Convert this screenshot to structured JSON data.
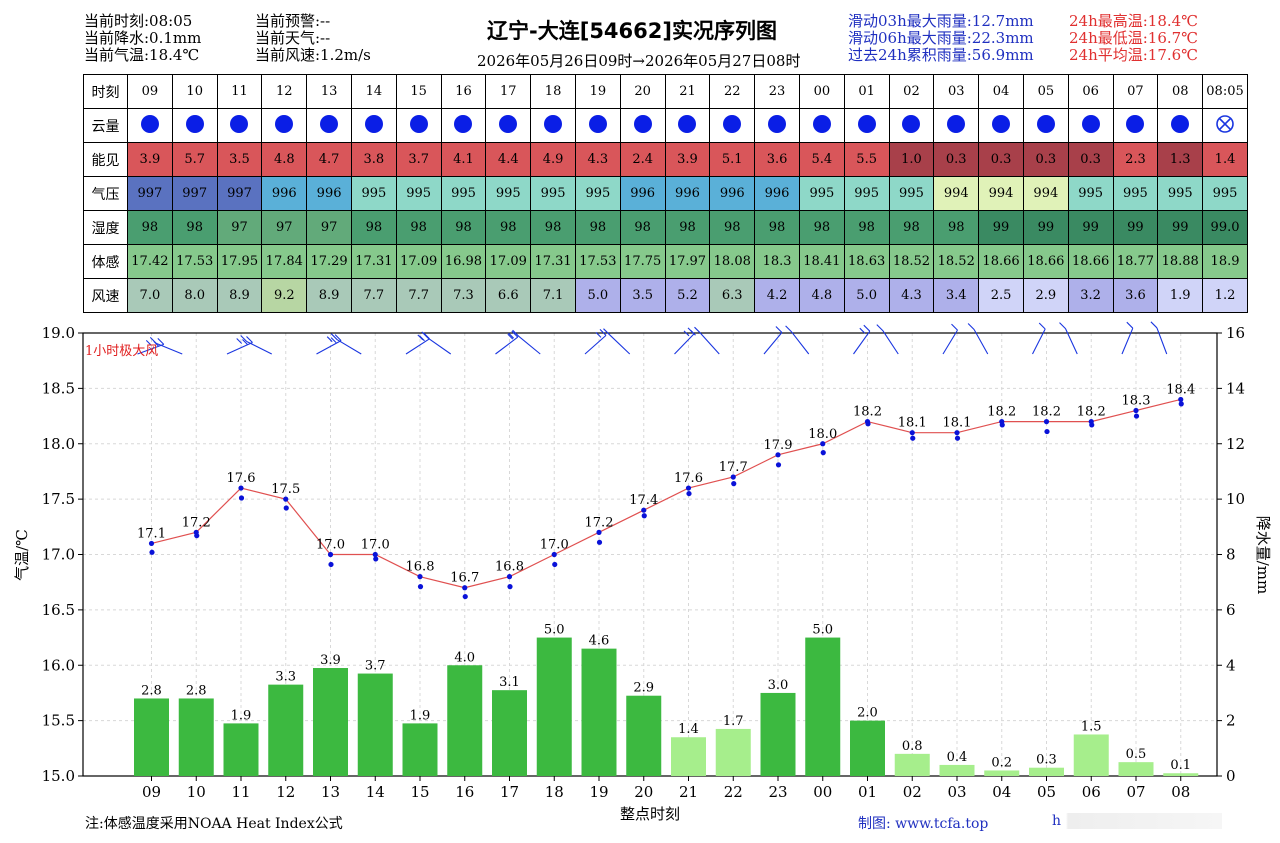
{
  "header": {
    "left": [
      "当前时刻:08:05",
      "当前降水:0.1mm",
      "当前气温:18.4℃"
    ],
    "mid": [
      "当前预警:--",
      "当前天气:--",
      "当前风速:1.2m/s"
    ],
    "title": "辽宁-大连[54662]实况序列图",
    "subtitle": "2026年05月26日09时→2026年05月27日08时",
    "rain_stats": [
      "滑动03h最大雨量:12.7mm",
      "滑动06h最大雨量:22.3mm",
      "过去24h累积雨量:56.9mm"
    ],
    "temp_stats": [
      "24h最高温:18.4℃",
      "24h最低温:16.7℃",
      "24h平均温:17.6℃"
    ]
  },
  "table": {
    "hours": [
      "09",
      "10",
      "11",
      "12",
      "13",
      "14",
      "15",
      "16",
      "17",
      "18",
      "19",
      "20",
      "21",
      "22",
      "23",
      "00",
      "01",
      "02",
      "03",
      "04",
      "05",
      "06",
      "07",
      "08",
      "08:05"
    ],
    "row_labels": {
      "time": "时刻",
      "cloud": "云量",
      "vis": "能见",
      "pres": "气压",
      "hum": "湿度",
      "feel": "体感",
      "wind": "风速"
    },
    "vis": [
      "3.9",
      "5.7",
      "3.5",
      "4.8",
      "4.7",
      "3.8",
      "3.7",
      "4.1",
      "4.4",
      "4.9",
      "4.3",
      "2.4",
      "3.9",
      "5.1",
      "3.6",
      "5.4",
      "5.5",
      "1.0",
      "0.3",
      "0.3",
      "0.3",
      "0.3",
      "2.3",
      "1.3",
      "1.4"
    ],
    "pres": [
      "997",
      "997",
      "997",
      "996",
      "996",
      "995",
      "995",
      "995",
      "995",
      "995",
      "995",
      "996",
      "996",
      "996",
      "996",
      "995",
      "995",
      "995",
      "994",
      "994",
      "994",
      "995",
      "995",
      "995",
      "995"
    ],
    "hum": [
      "98",
      "98",
      "97",
      "97",
      "97",
      "98",
      "98",
      "98",
      "98",
      "98",
      "98",
      "98",
      "98",
      "98",
      "98",
      "98",
      "98",
      "98",
      "98",
      "99",
      "99",
      "99",
      "99",
      "99",
      "99.0"
    ],
    "feel": [
      "17.42",
      "17.53",
      "17.95",
      "17.84",
      "17.29",
      "17.31",
      "17.09",
      "16.98",
      "17.09",
      "17.31",
      "17.53",
      "17.75",
      "17.97",
      "18.08",
      "18.3",
      "18.41",
      "18.63",
      "18.52",
      "18.52",
      "18.66",
      "18.66",
      "18.66",
      "18.77",
      "18.88",
      "18.9"
    ],
    "wind": [
      "7.0",
      "8.0",
      "8.9",
      "9.2",
      "8.9",
      "7.7",
      "7.7",
      "7.3",
      "6.6",
      "7.1",
      "5.0",
      "3.5",
      "5.2",
      "6.3",
      "4.2",
      "4.8",
      "5.0",
      "4.3",
      "3.4",
      "2.5",
      "2.9",
      "3.2",
      "3.6",
      "1.9",
      "1.2"
    ],
    "colors": {
      "vis_red": "#d9565a",
      "vis_dark": "#a8404a",
      "pres_997": "#5a72c0",
      "pres_996": "#5ab0d8",
      "pres_995": "#8ed8c8",
      "pres_994": "#e0f2b8",
      "hum_98": "#4a9e70",
      "hum_97": "#62aa7a",
      "hum_99": "#3a8a62",
      "feel": "#86c98c",
      "wind_strong": "#a9c9b8",
      "wind_9": "#b7d6a3",
      "wind_mid": "#aeb0ea",
      "wind_low": "#d0d4f8"
    }
  },
  "chart_data": {
    "type": "bar",
    "categories": [
      "09",
      "10",
      "11",
      "12",
      "13",
      "14",
      "15",
      "16",
      "17",
      "18",
      "19",
      "20",
      "21",
      "22",
      "23",
      "00",
      "01",
      "02",
      "03",
      "04",
      "05",
      "06",
      "07",
      "08"
    ],
    "series": [
      {
        "values": [
          2.8,
          2.8,
          1.9,
          3.3,
          3.9,
          3.7,
          1.9,
          4.0,
          3.1,
          5.0,
          4.6,
          2.9,
          1.4,
          1.7,
          3.0,
          5.0,
          2.0,
          0.8,
          0.4,
          0.2,
          0.3,
          1.5,
          0.5,
          0.1
        ]
      },
      {
        "values": [
          17.1,
          17.2,
          17.6,
          17.5,
          17.0,
          17.0,
          16.8,
          16.7,
          16.8,
          17.0,
          17.2,
          17.4,
          17.6,
          17.7,
          17.9,
          18.0,
          18.2,
          18.1,
          18.1,
          18.2,
          18.2,
          18.2,
          18.3,
          18.4
        ]
      }
    ],
    "xlabel": "整点时刻",
    "ylabel": "气温/℃",
    "y2label": "降水量/mm",
    "ylim": [
      15.0,
      19.0
    ],
    "y2lim": [
      0,
      16
    ],
    "yticks": [
      "15.0",
      "15.5",
      "16.0",
      "16.5",
      "17.0",
      "17.5",
      "18.0",
      "18.5",
      "19.0"
    ],
    "y2ticks": [
      "0",
      "2",
      "4",
      "6",
      "8",
      "10",
      "12",
      "14",
      "16"
    ],
    "annotation": "1小时极大风",
    "minute_temps": [
      17.02,
      17.17,
      17.51,
      17.42,
      16.91,
      16.96,
      16.71,
      16.62,
      16.71,
      16.91,
      17.11,
      17.35,
      17.55,
      17.64,
      17.81,
      17.92,
      18.18,
      18.05,
      18.05,
      18.17,
      18.11,
      18.17,
      18.25,
      18.36
    ],
    "colors": {
      "bar": "#3cb940",
      "bar_light": "#a6ee8c",
      "line": "#e05050",
      "point": "#0a12d8",
      "barb": "#1a36e0",
      "annotation": "#e02020"
    }
  },
  "footer": {
    "note": "注:体感温度采用NOAA Heat Index公式",
    "credit": "制图: www.tcfa.top",
    "faded": "h"
  }
}
